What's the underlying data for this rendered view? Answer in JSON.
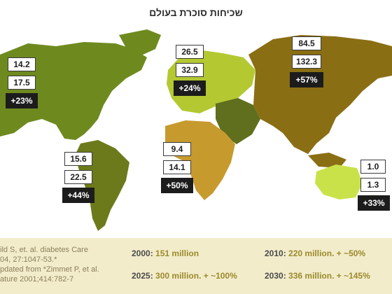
{
  "title": "שכיחות סוכרת בעולם",
  "regions": {
    "north_america": {
      "v2000": "14.2",
      "v2030": "17.5",
      "pct": "+23%"
    },
    "europe": {
      "v2000": "26.5",
      "v2030": "32.9",
      "pct": "+24%"
    },
    "asia": {
      "v2000": "84.5",
      "v2030": "132.3",
      "pct": "+57%"
    },
    "africa": {
      "v2000": "9.4",
      "v2030": "14.1",
      "pct": "+50%"
    },
    "south_america": {
      "v2000": "15.6",
      "v2030": "22.5",
      "pct": "+44%"
    },
    "oceania": {
      "v2000": "1.0",
      "v2030": "1.3",
      "pct": "+33%"
    }
  },
  "source_lines": "ild S, et. al. diabetes Care\n04, 27:1047-53.*\npdated from *Zimmet P, et al.\nature 2001;414:782-7",
  "stats": [
    {
      "year": "2000:",
      "value": "151 million"
    },
    {
      "year": "2010:",
      "value": "220 million. + ~50%"
    },
    {
      "year": "2025:",
      "value": "300 million. + ~100%"
    },
    {
      "year": "2030:",
      "value": "336 million. + ~145%"
    }
  ],
  "colors": {
    "north_america": "#6e8a1f",
    "south_america": "#6d7a1b",
    "europe": "#b4c832",
    "middle_east": "#5f6f1d",
    "africa": "#c79a2e",
    "asia": "#8a6e13",
    "oceania": "#c9e24a",
    "footer": "#f3eccb",
    "stat_value": "#9a8a2c"
  }
}
